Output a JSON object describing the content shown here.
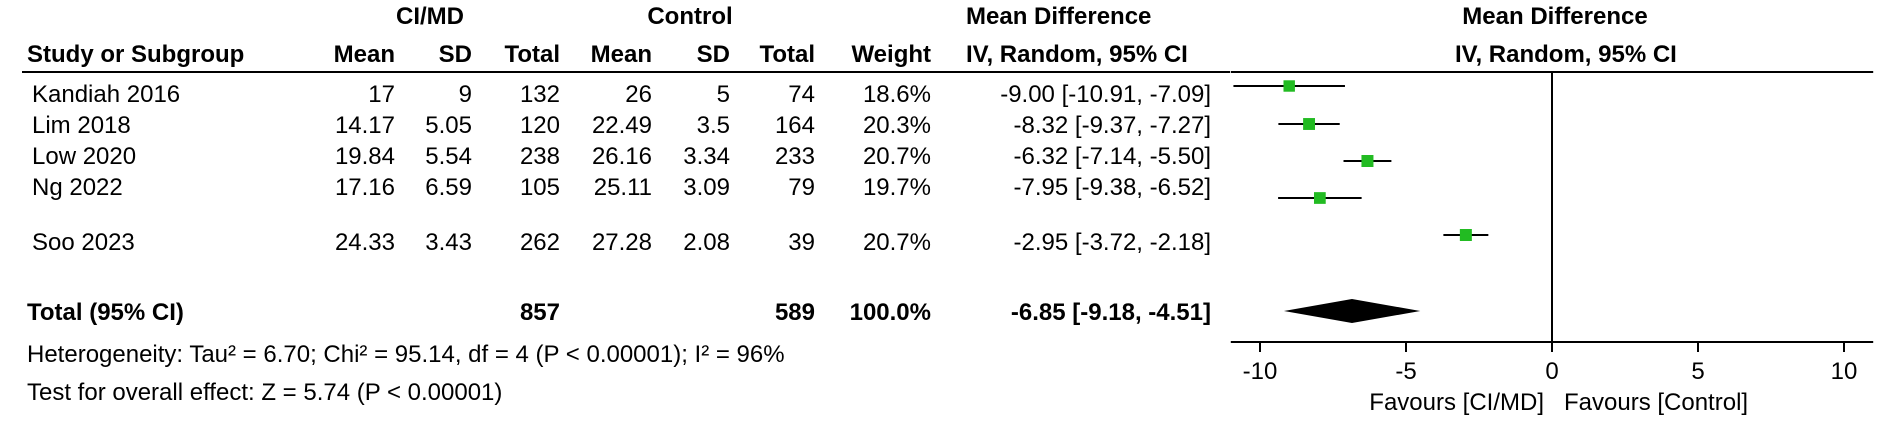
{
  "header": {
    "group1_label": "CI/MD",
    "group2_label": "Control",
    "md_label": "Mean Difference",
    "plot_label": "Mean Difference",
    "columns": {
      "study": "Study or Subgroup",
      "mean1": "Mean",
      "sd1": "SD",
      "total1": "Total",
      "mean2": "Mean",
      "sd2": "SD",
      "total2": "Total",
      "weight": "Weight",
      "md": "IV, Random, 95% CI",
      "plot": "IV, Random, 95% CI"
    }
  },
  "rows": [
    {
      "study": "Kandiah 2016",
      "mean1": "17",
      "sd1": "9",
      "total1": "132",
      "mean2": "26",
      "sd2": "5",
      "total2": "74",
      "weight": "18.6%",
      "ci": "-9.00 [-10.91, -7.09]"
    },
    {
      "study": "Lim 2018",
      "mean1": "14.17",
      "sd1": "5.05",
      "total1": "120",
      "mean2": "22.49",
      "sd2": "3.5",
      "total2": "164",
      "weight": "20.3%",
      "ci": "-8.32 [-9.37, -7.27]"
    },
    {
      "study": "Low 2020",
      "mean1": "19.84",
      "sd1": "5.54",
      "total1": "238",
      "mean2": "26.16",
      "sd2": "3.34",
      "total2": "233",
      "weight": "20.7%",
      "ci": "-6.32 [-7.14, -5.50]"
    },
    {
      "study": "Ng 2022",
      "mean1": "17.16",
      "sd1": "6.59",
      "total1": "105",
      "mean2": "25.11",
      "sd2": "3.09",
      "total2": "79",
      "weight": "19.7%",
      "ci": "-7.95 [-9.38, -6.52]"
    },
    {
      "study": "Soo 2023",
      "mean1": "24.33",
      "sd1": "3.43",
      "total1": "262",
      "mean2": "27.28",
      "sd2": "2.08",
      "total2": "39",
      "weight": "20.7%",
      "ci": "-2.95 [-3.72, -2.18]"
    }
  ],
  "total": {
    "label": "Total (95% CI)",
    "total1": "857",
    "total2": "589",
    "weight": "100.0%",
    "ci": "-6.85 [-9.18, -4.51]"
  },
  "footer": {
    "heterogeneity": "Heterogeneity: Tau² = 6.70; Chi² = 95.14, df = 4 (P < 0.00001); I² = 96%",
    "overall_effect": "Test for overall effect: Z = 5.74 (P < 0.00001)"
  },
  "axis": {
    "favours_left": "Favours [CI/MD]",
    "favours_right": "Favours [Control]"
  },
  "colors": {
    "marker": "#22bb22",
    "diamond": "#000000"
  },
  "chart_data": {
    "type": "scatter",
    "title": "",
    "xlabel": "",
    "xlim": [
      -11,
      11
    ],
    "xticks": [
      -10,
      -5,
      0,
      5,
      10
    ],
    "tick_labels": [
      "-10",
      "-5",
      "0",
      "5",
      "10"
    ],
    "reference_line": 0,
    "series": [
      {
        "studies": [
          "Kandiah 2016",
          "Lim 2018",
          "Low 2020",
          "Ng 2022",
          "Soo 2023"
        ],
        "estimate": [
          -9.0,
          -8.32,
          -6.32,
          -7.95,
          -2.95
        ],
        "ci_low": [
          -10.91,
          -9.37,
          -7.14,
          -9.38,
          -3.72
        ],
        "ci_high": [
          -7.09,
          -7.27,
          -5.5,
          -6.52,
          -2.18
        ],
        "weight": [
          18.6,
          20.3,
          20.7,
          19.7,
          20.7
        ]
      }
    ],
    "pooled": {
      "estimate": -6.85,
      "ci_low": -9.18,
      "ci_high": -4.51
    }
  }
}
